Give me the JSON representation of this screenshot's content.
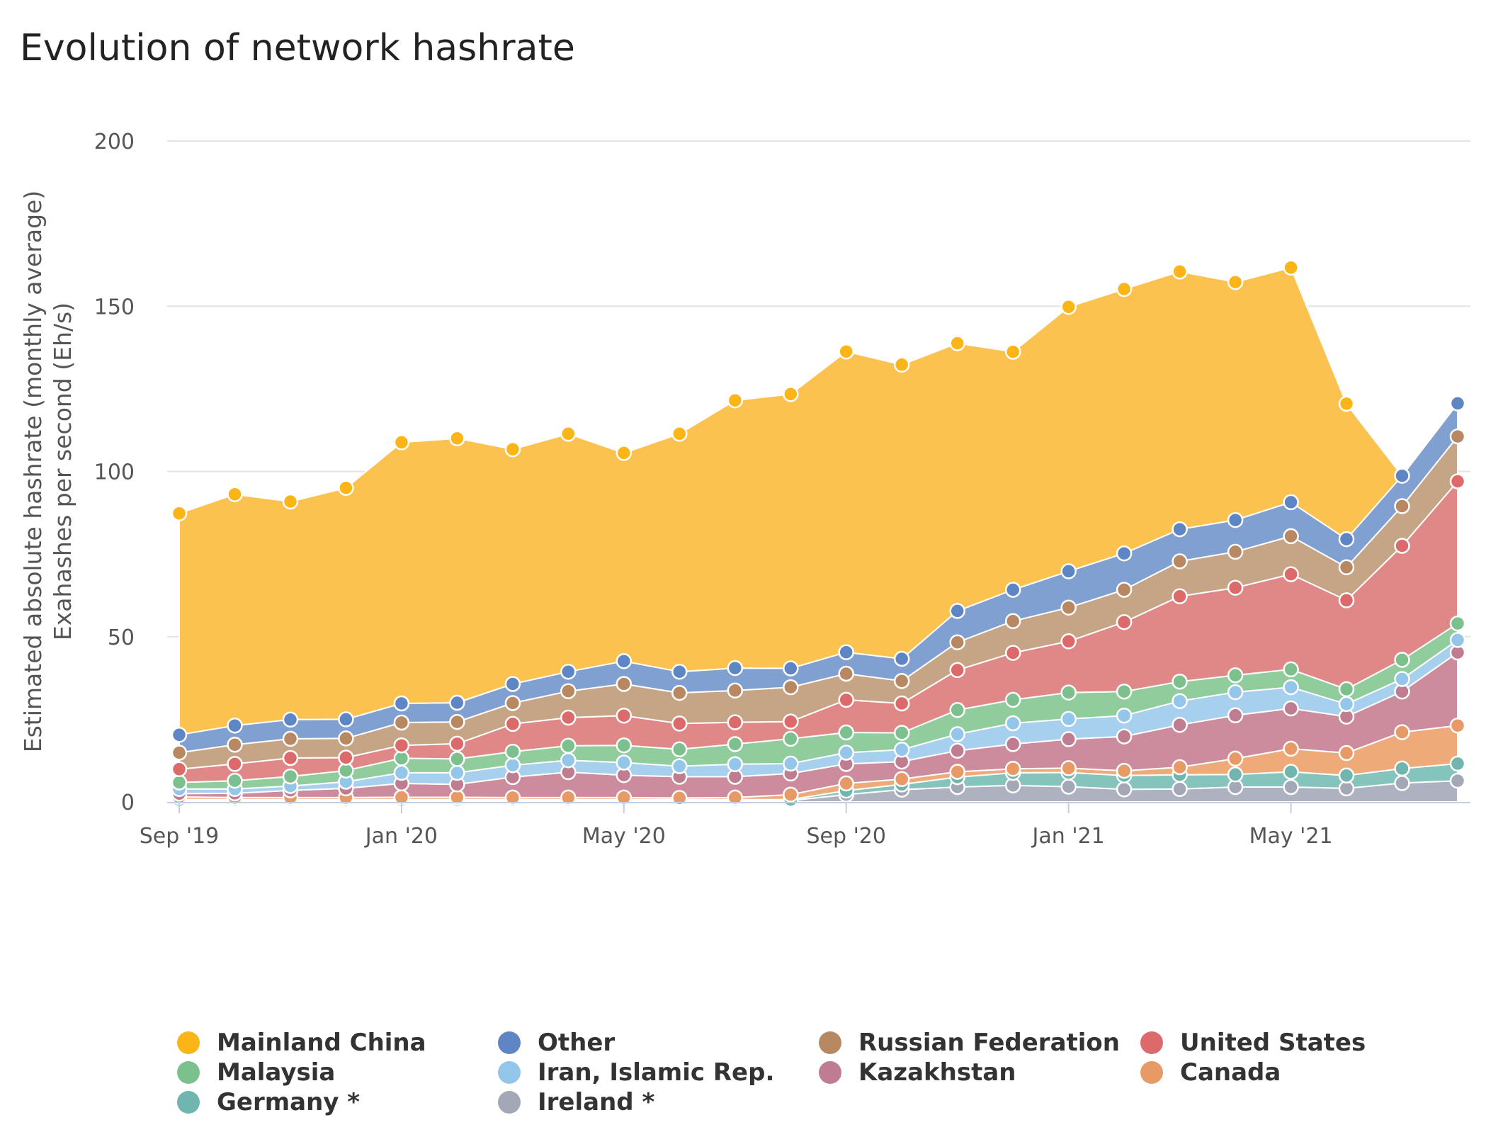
{
  "chart_data": {
    "type": "area",
    "stacked": true,
    "title": "Evolution of network hashrate",
    "ylabel": [
      "Estimated absolute hashrate (monthly average)",
      "Exahashes per second (Eh/s)"
    ],
    "xlabel": "",
    "ylim": [
      0,
      200
    ],
    "yticks": [
      0,
      50,
      100,
      150,
      200
    ],
    "grid": true,
    "legend_position": "bottom",
    "x": [
      "Sep '19",
      "Oct '19",
      "Nov '19",
      "Dec '19",
      "Jan '20",
      "Feb '20",
      "Mar '20",
      "Apr '20",
      "May '20",
      "Jun '20",
      "Jul '20",
      "Aug '20",
      "Sep '20",
      "Oct '20",
      "Nov '20",
      "Dec '20",
      "Jan '21",
      "Feb '21",
      "Mar '21",
      "Apr '21",
      "May '21",
      "Jun '21",
      "Jul '21",
      "Aug '21"
    ],
    "xtick_labels": [
      {
        "index": 0,
        "label": "Sep '19"
      },
      {
        "index": 4,
        "label": "Jan '20"
      },
      {
        "index": 8,
        "label": "May '20"
      },
      {
        "index": 12,
        "label": "Sep '20"
      },
      {
        "index": 16,
        "label": "Jan '21"
      },
      {
        "index": 20,
        "label": "May '21"
      }
    ],
    "series": [
      {
        "name": "Ireland *",
        "color": "#aeb2c0",
        "values": [
          0.4,
          0.4,
          0.4,
          0.4,
          0.4,
          0.4,
          0.4,
          0.4,
          0.4,
          0.4,
          0.4,
          0.4,
          2.2,
          3.7,
          4.5,
          5.0,
          4.6,
          3.8,
          3.9,
          4.5,
          4.5,
          4.1,
          5.7,
          6.4
        ]
      },
      {
        "name": "Germany *",
        "color": "#84c4bc",
        "values": [
          0.3,
          0.3,
          0.3,
          0.3,
          0.3,
          0.3,
          0.3,
          0.3,
          0.3,
          0.3,
          0.3,
          0.3,
          1.2,
          1.6,
          3.0,
          3.8,
          4.3,
          4.2,
          4.3,
          3.8,
          4.6,
          3.9,
          4.4,
          5.2
        ]
      },
      {
        "name": "Canada",
        "color": "#eeaa78",
        "values": [
          0.8,
          0.6,
          0.6,
          0.6,
          0.7,
          0.7,
          0.6,
          0.6,
          0.6,
          0.5,
          0.6,
          1.5,
          2.2,
          1.6,
          1.6,
          1.2,
          1.3,
          1.4,
          2.3,
          4.8,
          7.0,
          6.8,
          11.0,
          11.5
        ]
      },
      {
        "name": "Kazakhstan",
        "color": "#cc8c9e",
        "values": [
          1.0,
          1.3,
          2.2,
          2.8,
          4.2,
          3.9,
          6.2,
          7.7,
          6.8,
          6.4,
          6.3,
          6.4,
          5.9,
          5.3,
          6.4,
          7.5,
          8.8,
          10.4,
          12.8,
          13.1,
          12.2,
          11.0,
          12.3,
          22.1
        ]
      },
      {
        "name": "Iran, Islamic Rep.",
        "color": "#a6d0ee",
        "values": [
          1.4,
          1.3,
          1.3,
          2.0,
          3.2,
          3.5,
          3.6,
          3.6,
          3.8,
          3.2,
          3.8,
          3.0,
          3.4,
          3.6,
          5.0,
          6.3,
          6.1,
          6.3,
          7.2,
          7.0,
          6.4,
          3.8,
          3.8,
          3.8
        ]
      },
      {
        "name": "Malaysia",
        "color": "#90cc9c",
        "values": [
          2.0,
          2.5,
          2.9,
          3.4,
          4.4,
          4.2,
          4.1,
          4.4,
          5.2,
          5.1,
          6.1,
          7.5,
          6.1,
          5.1,
          7.3,
          7.1,
          8.0,
          7.3,
          5.9,
          5.1,
          5.4,
          4.5,
          5.8,
          5.0
        ]
      },
      {
        "name": "United States",
        "color": "#e08888",
        "values": [
          4.0,
          5.1,
          5.6,
          3.9,
          3.9,
          4.6,
          8.4,
          8.5,
          9.0,
          7.8,
          6.6,
          5.2,
          9.9,
          8.9,
          12.1,
          14.2,
          15.5,
          21.0,
          25.8,
          26.5,
          28.8,
          26.9,
          34.5,
          43.0
        ]
      },
      {
        "name": "Russian Federation",
        "color": "#c6a486",
        "values": [
          5.0,
          5.8,
          5.8,
          5.8,
          6.9,
          6.6,
          6.3,
          8.0,
          9.6,
          9.3,
          9.6,
          10.4,
          7.9,
          6.8,
          8.4,
          9.6,
          10.2,
          9.8,
          10.6,
          10.9,
          11.5,
          10.0,
          12.0,
          13.6
        ]
      },
      {
        "name": "Other",
        "color": "#7fa0d0",
        "values": [
          5.4,
          5.8,
          5.8,
          5.8,
          5.8,
          5.8,
          5.8,
          5.9,
          6.9,
          6.4,
          6.8,
          5.7,
          6.5,
          6.7,
          9.5,
          9.5,
          11.0,
          11.0,
          9.7,
          9.6,
          10.3,
          8.5,
          9.2,
          10.0
        ]
      },
      {
        "name": "Mainland China",
        "color": "#fbc24f",
        "values": [
          67,
          70,
          66,
          70,
          79,
          80,
          71,
          72,
          63,
          72,
          81,
          83,
          91,
          89,
          81,
          72,
          80,
          80,
          78,
          72,
          71,
          41,
          0,
          0
        ]
      }
    ],
    "legend": [
      {
        "name": "Mainland China",
        "color": "#fbb516"
      },
      {
        "name": "Other",
        "color": "#5e86c4"
      },
      {
        "name": "Russian Federation",
        "color": "#b88862"
      },
      {
        "name": "United States",
        "color": "#dc6a6a"
      },
      {
        "name": "Malaysia",
        "color": "#7cc08e"
      },
      {
        "name": "Iran, Islamic Rep.",
        "color": "#94c6ea"
      },
      {
        "name": "Kazakhstan",
        "color": "#c07c90"
      },
      {
        "name": "Canada",
        "color": "#e89a66"
      },
      {
        "name": "Germany *",
        "color": "#70b6ae"
      },
      {
        "name": "Ireland *",
        "color": "#a4a8b6"
      }
    ]
  }
}
